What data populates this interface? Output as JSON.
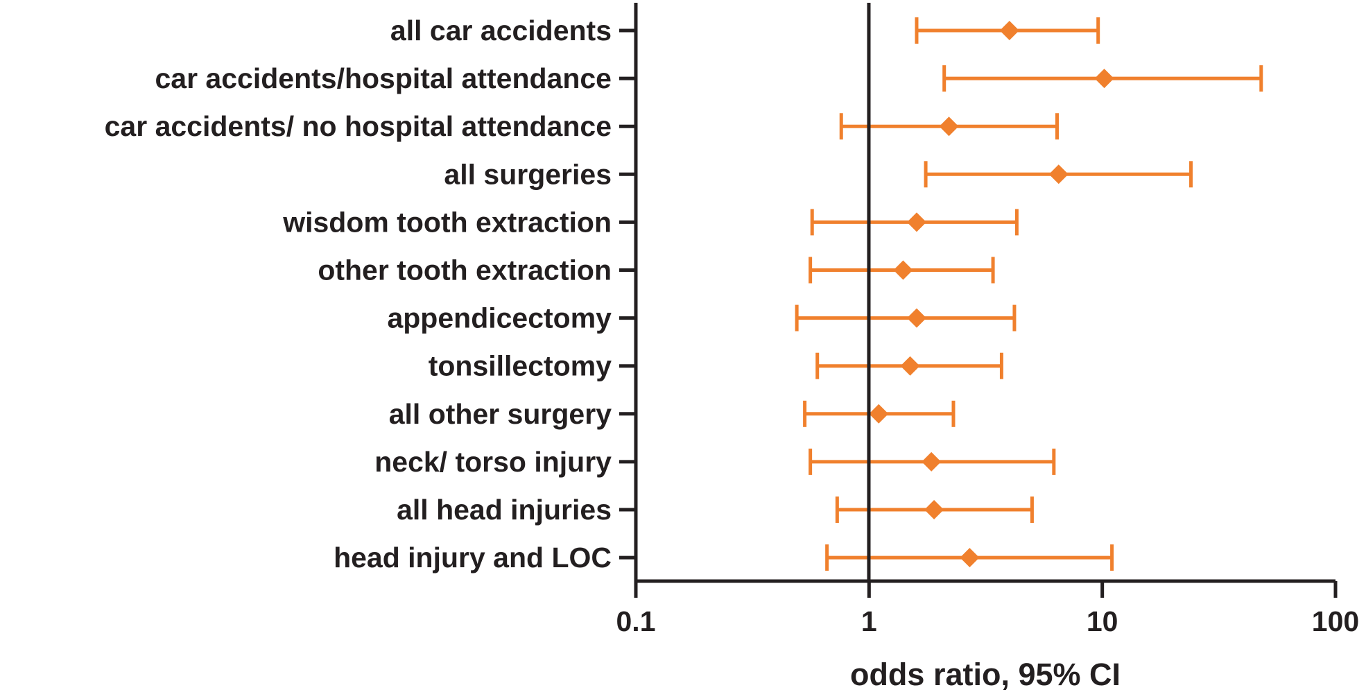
{
  "chart_data": {
    "type": "forest",
    "xlabel": "odds ratio, 95% CI",
    "xscale": "log",
    "xlim": [
      0.1,
      100
    ],
    "x_ticks": [
      0.1,
      1,
      10,
      100
    ],
    "x_tick_labels": [
      "0.1",
      "1",
      "10",
      "100"
    ],
    "reference_line": 1,
    "grid": false,
    "legend": "none",
    "colors": {
      "marker": "#f0802d",
      "axis": "#231f20",
      "text": "#231f20"
    },
    "categories": [
      "all car accidents",
      "car accidents/hospital attendance",
      "car accidents/ no hospital attendance",
      "all surgeries",
      "wisdom tooth extraction",
      "other tooth extraction",
      "appendicectomy",
      "tonsillectomy",
      "all other surgery",
      "neck/ torso injury",
      "all head injuries",
      "head injury and LOC"
    ],
    "estimates": [
      4.0,
      10.2,
      2.2,
      6.5,
      1.6,
      1.4,
      1.6,
      1.5,
      1.1,
      1.85,
      1.9,
      2.7
    ],
    "ci_lower": [
      1.6,
      2.1,
      0.76,
      1.75,
      0.57,
      0.56,
      0.49,
      0.6,
      0.53,
      0.56,
      0.73,
      0.66
    ],
    "ci_upper": [
      9.6,
      48.0,
      6.4,
      24.0,
      4.3,
      3.4,
      4.2,
      3.7,
      2.3,
      6.2,
      5.0,
      11.0
    ]
  }
}
